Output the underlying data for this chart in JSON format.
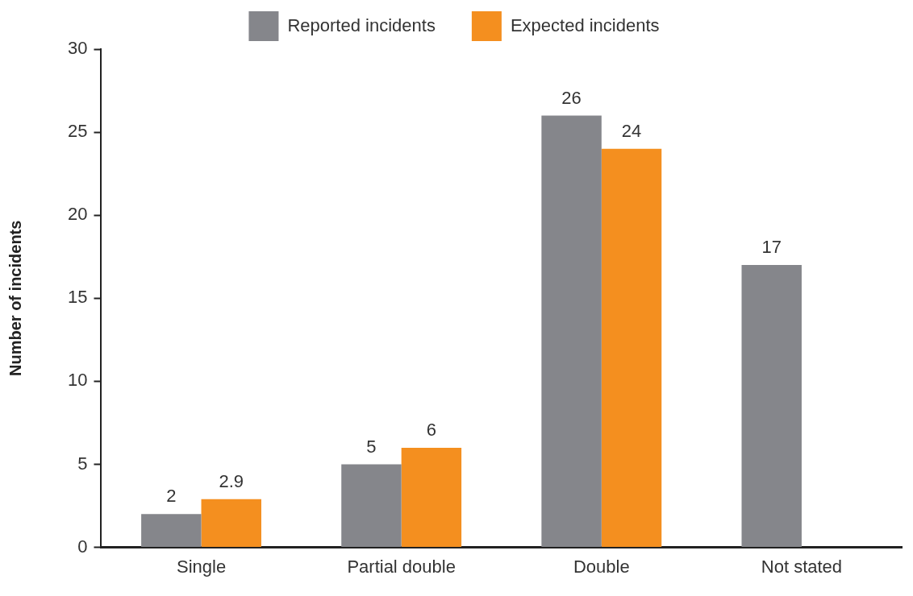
{
  "chart_data": {
    "type": "bar",
    "ylabel": "Number of incidents",
    "categories": [
      "Single",
      "Partial double",
      "Double",
      "Not stated"
    ],
    "series": [
      {
        "name": "Reported incidents",
        "color": "#85868b",
        "values": [
          2,
          5,
          26,
          17
        ]
      },
      {
        "name": "Expected incidents",
        "color": "#f48f1f",
        "values": [
          2.9,
          6,
          24,
          null
        ]
      }
    ],
    "ylim": [
      0,
      30
    ],
    "yticks": [
      0,
      5,
      10,
      15,
      20,
      25,
      30
    ],
    "data_labels": true,
    "legend": "top"
  }
}
